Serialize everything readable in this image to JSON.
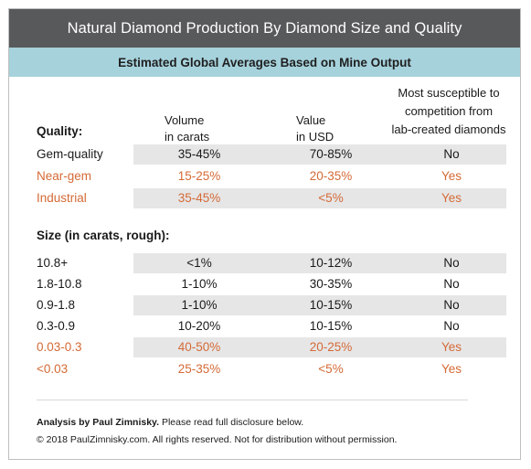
{
  "header": {
    "title": "Natural Diamond Production By Diamond Size and Quality",
    "subtitle": "Estimated Global Averages Based on Mine Output"
  },
  "columns": {
    "volume": [
      "Volume",
      "in carats"
    ],
    "value": [
      "Value",
      "in USD"
    ],
    "susceptible": [
      "Most susceptible to",
      "competition from",
      "lab-created diamonds"
    ]
  },
  "quality_section": {
    "label": "Quality:",
    "rows": [
      {
        "label": "Gem-quality",
        "volume": "35-45%",
        "value": "70-85%",
        "susceptible": "No"
      },
      {
        "label": "Near-gem",
        "volume": "15-25%",
        "value": "20-35%",
        "susceptible": "Yes"
      },
      {
        "label": "Industrial",
        "volume": "35-45%",
        "value": "<5%",
        "susceptible": "Yes"
      }
    ]
  },
  "size_section": {
    "label": "Size (in carats, rough):",
    "rows": [
      {
        "label": "10.8+",
        "volume": "<1%",
        "value": "10-12%",
        "susceptible": "No"
      },
      {
        "label": "1.8-10.8",
        "volume": "1-10%",
        "value": "30-35%",
        "susceptible": "No"
      },
      {
        "label": "0.9-1.8",
        "volume": "1-10%",
        "value": "10-15%",
        "susceptible": "No"
      },
      {
        "label": "0.3-0.9",
        "volume": "10-20%",
        "value": "10-15%",
        "susceptible": "No"
      },
      {
        "label": "0.03-0.3",
        "volume": "40-50%",
        "value": "20-25%",
        "susceptible": "Yes"
      },
      {
        "label": "<0.03",
        "volume": "25-35%",
        "value": "<5%",
        "susceptible": "Yes"
      }
    ]
  },
  "footer": {
    "author": "Analysis by Paul Zimnisky.",
    "disclosure": " Please read full disclosure below.",
    "copyright": "© 2018 PaulZimnisky.com. All rights reserved. Not for distribution without permission."
  },
  "colors": {
    "title_bar": "#58595b",
    "subtitle_bar": "#a6d2dc",
    "row_shade": "#e6e6e7",
    "highlight": "#d46a36"
  }
}
